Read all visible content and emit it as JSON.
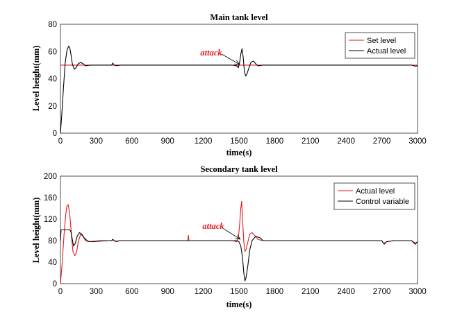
{
  "chart_data": [
    {
      "type": "line",
      "title": "Main tank level",
      "xlabel": "time(s)",
      "ylabel": "Level height(mm)",
      "xlim": [
        0,
        3000
      ],
      "ylim": [
        0,
        80
      ],
      "xticks": [
        0,
        300,
        600,
        900,
        1200,
        1500,
        1800,
        2100,
        2400,
        2700,
        3000
      ],
      "yticks": [
        0,
        20,
        40,
        60,
        80
      ],
      "grid": false,
      "legend": "top-right",
      "series": [
        {
          "name": "Set level",
          "color": "#e31a1c",
          "x": [
            0,
            3000
          ],
          "y": [
            50,
            50
          ]
        },
        {
          "name": "Actual level",
          "color": "#000000",
          "x": [
            0,
            10,
            25,
            40,
            55,
            70,
            80,
            90,
            100,
            115,
            130,
            150,
            170,
            190,
            210,
            230,
            260,
            300,
            350,
            400,
            430,
            440,
            450,
            470,
            500,
            550,
            600,
            700,
            800,
            900,
            1000,
            1100,
            1200,
            1300,
            1400,
            1450,
            1480,
            1495,
            1505,
            1515,
            1525,
            1535,
            1545,
            1555,
            1565,
            1580,
            1600,
            1620,
            1640,
            1660,
            1700,
            1800,
            1900,
            2000,
            2100,
            2200,
            2300,
            2400,
            2500,
            2600,
            2700,
            2800,
            2900,
            2950,
            2980,
            3000
          ],
          "y": [
            0,
            12,
            33,
            52,
            61,
            64,
            62,
            57,
            51,
            47,
            48,
            51,
            52,
            51,
            49.5,
            49.8,
            50,
            50,
            50,
            50,
            50,
            51.5,
            50,
            49.6,
            50,
            50,
            50,
            50,
            50,
            50,
            50,
            50,
            50,
            50,
            50,
            50,
            49.5,
            48,
            52,
            58,
            62,
            56,
            46,
            42,
            43,
            47,
            52,
            53,
            51,
            49.5,
            50,
            50,
            50,
            50,
            50,
            50,
            50,
            50,
            50,
            50,
            50,
            50,
            50,
            50,
            49.2,
            49.5
          ]
        }
      ],
      "annotations": [
        {
          "text": "attack",
          "color": "#e31a1c"
        }
      ]
    },
    {
      "type": "line",
      "title": "Secondary tank level",
      "xlabel": "time(s)",
      "ylabel": "Level  height(mm)",
      "xlim": [
        0,
        3000
      ],
      "ylim": [
        0,
        200
      ],
      "xticks": [
        0,
        300,
        600,
        900,
        1200,
        1500,
        1800,
        2100,
        2400,
        2700,
        3000
      ],
      "yticks": [
        0,
        40,
        80,
        120,
        160,
        200
      ],
      "grid": false,
      "legend": "top-right",
      "series": [
        {
          "name": "Actual level",
          "color": "#e31a1c",
          "x": [
            0,
            15,
            30,
            45,
            55,
            65,
            75,
            85,
            95,
            105,
            120,
            135,
            150,
            170,
            190,
            210,
            240,
            280,
            330,
            400,
            430,
            440,
            450,
            470,
            500,
            600,
            700,
            800,
            900,
            1000,
            1070,
            1075,
            1080,
            1090,
            1200,
            1300,
            1400,
            1450,
            1480,
            1495,
            1505,
            1515,
            1522,
            1530,
            1540,
            1550,
            1560,
            1575,
            1590,
            1610,
            1630,
            1660,
            1700,
            1800,
            1900,
            2000,
            2100,
            2200,
            2300,
            2400,
            2500,
            2600,
            2700,
            2720,
            2740,
            2800,
            2900,
            2950,
            2980,
            3000
          ],
          "y": [
            0,
            40,
            90,
            130,
            145,
            147,
            135,
            112,
            82,
            60,
            52,
            58,
            78,
            92,
            88,
            80,
            78,
            79,
            80,
            80,
            80,
            83,
            80,
            78,
            80,
            80,
            80,
            80,
            80,
            80,
            80,
            90,
            80,
            80,
            80,
            80,
            80,
            80,
            78,
            85,
            110,
            140,
            153,
            120,
            78,
            60,
            64,
            78,
            92,
            95,
            90,
            82,
            80,
            80,
            80,
            80,
            80,
            80,
            80,
            80,
            80,
            80,
            80,
            73,
            78,
            80,
            80,
            80,
            73,
            78
          ]
        },
        {
          "name": "Control variable",
          "color": "#000000",
          "x": [
            0,
            5,
            10,
            80,
            90,
            100,
            110,
            125,
            140,
            160,
            180,
            200,
            230,
            270,
            320,
            400,
            430,
            440,
            450,
            470,
            500,
            600,
            700,
            800,
            900,
            1000,
            1100,
            1200,
            1300,
            1400,
            1480,
            1500,
            1515,
            1530,
            1540,
            1550,
            1560,
            1575,
            1590,
            1610,
            1640,
            1680,
            1700,
            1800,
            1900,
            2000,
            2100,
            2200,
            2300,
            2400,
            2500,
            2600,
            2700,
            2710,
            2720,
            2740,
            2800,
            2900,
            2950,
            2980,
            3000
          ],
          "y": [
            80,
            100,
            100,
            100,
            95,
            82,
            70,
            75,
            88,
            95,
            92,
            85,
            79,
            78,
            79,
            80,
            80,
            82,
            80,
            79,
            80,
            80,
            80,
            80,
            80,
            80,
            80,
            80,
            80,
            80,
            80,
            78,
            70,
            48,
            20,
            5,
            12,
            35,
            62,
            80,
            88,
            85,
            80,
            80,
            80,
            80,
            80,
            80,
            80,
            80,
            80,
            80,
            80,
            76,
            75,
            78,
            80,
            80,
            80,
            75,
            78
          ]
        }
      ],
      "annotations": [
        {
          "text": "attack",
          "color": "#e31a1c"
        }
      ]
    }
  ]
}
